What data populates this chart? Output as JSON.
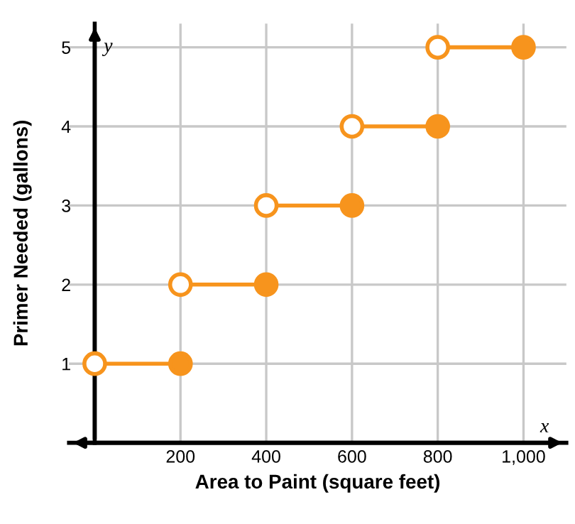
{
  "chart_data": {
    "type": "line",
    "xlabel": "Area to Paint (square feet)",
    "ylabel": "Primer Needed (gallons)",
    "annotations": [
      "x",
      "y"
    ],
    "series": [
      {
        "color": "#f7941d",
        "x": [
          0,
          200
        ],
        "values": [
          1,
          1
        ]
      },
      {
        "color": "#f7941d",
        "x": [
          200,
          400
        ],
        "values": [
          2,
          2
        ]
      },
      {
        "color": "#f7941d",
        "x": [
          400,
          600
        ],
        "values": [
          3,
          3
        ]
      },
      {
        "color": "#f7941d",
        "x": [
          600,
          800
        ],
        "values": [
          4,
          4
        ]
      },
      {
        "color": "#f7941d",
        "x": [
          800,
          1000
        ],
        "values": [
          5,
          5
        ]
      },
      {
        "type": "scatter",
        "color": "#ffffff",
        "marker": "circle",
        "x": [
          0,
          200,
          400,
          600,
          800
        ],
        "values": [
          1,
          2,
          3,
          4,
          5
        ]
      },
      {
        "type": "scatter",
        "color": "#f7941d",
        "marker": "circle",
        "x": [
          200,
          400,
          600,
          800,
          1000
        ],
        "values": [
          1,
          2,
          3,
          4,
          5
        ]
      }
    ],
    "xlim": [
      -60,
      1100
    ],
    "ylim": [
      0,
      5.3
    ],
    "xticks": [
      {
        "value": 0,
        "label": null
      },
      200,
      400,
      600,
      800,
      {
        "value": 1000,
        "label": "1,000"
      }
    ],
    "yticks": [
      1,
      2,
      3,
      4,
      5
    ],
    "grid": true
  }
}
